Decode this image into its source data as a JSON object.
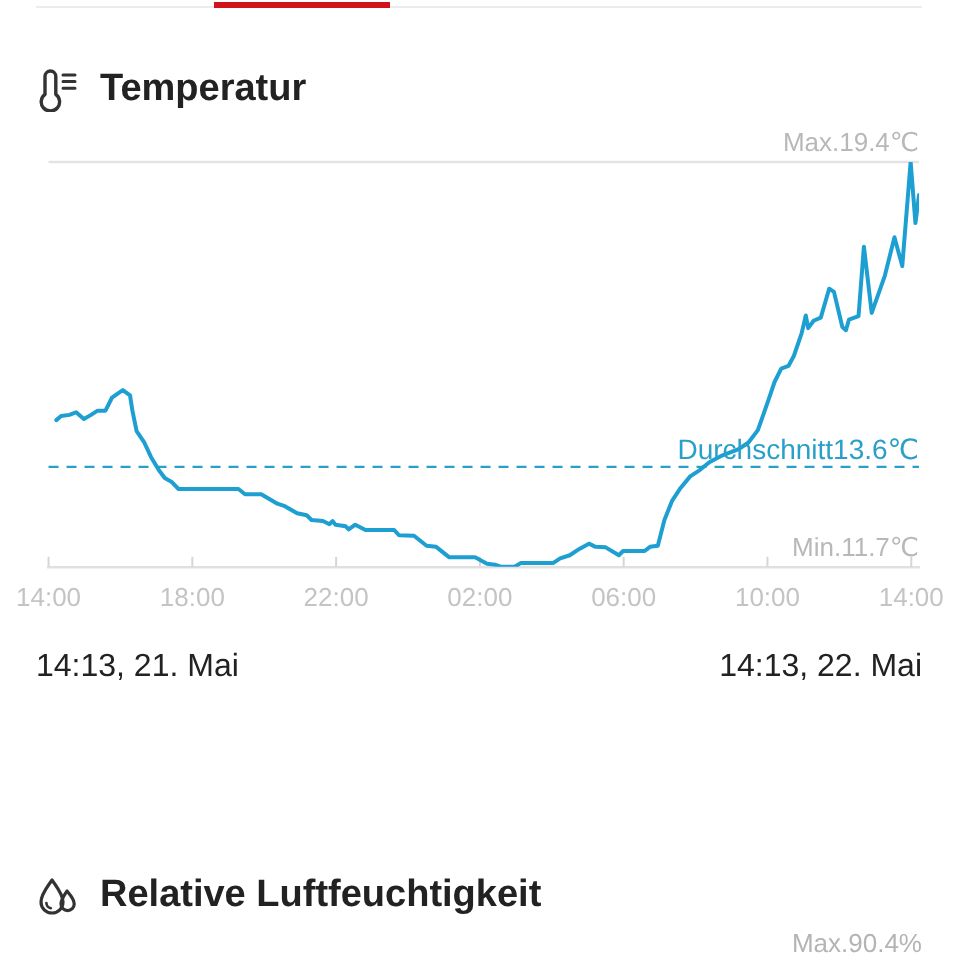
{
  "chart_data": [
    {
      "type": "line",
      "title": "Temperatur",
      "x": [
        "--05-21T14:13",
        "--05-21T14:21",
        "--05-21T14:35",
        "--05-21T14:46",
        "--05-21T14:59",
        "--05-21T15:11",
        "--05-21T15:22",
        "--05-21T15:35",
        "--05-21T15:46",
        "--05-21T15:56",
        "--05-21T16:04",
        "--05-21T16:16",
        "--05-21T16:20",
        "--05-21T16:27",
        "--05-21T16:40",
        "--05-21T16:51",
        "--05-21T17:04",
        "--05-21T17:14",
        "--05-21T17:25",
        "--05-21T17:37",
        "--05-21T19:17",
        "--05-21T19:28",
        "--05-21T19:55",
        "--05-21T20:22",
        "--05-21T20:33",
        "--05-21T20:55",
        "--05-21T21:11",
        "--05-21T21:19",
        "--05-21T21:38",
        "--05-21T21:49",
        "--05-21T21:54",
        "--05-21T21:59",
        "--05-21T22:16",
        "--05-21T22:21",
        "--05-21T22:32",
        "--05-21T22:49",
        "--05-21T23:37",
        "--05-21T23:45",
        "--05-22T00:10",
        "--05-22T00:31",
        "--05-22T00:47",
        "--05-22T01:09",
        "--05-22T01:52",
        "--05-22T02:12",
        "--05-22T02:25",
        "--05-22T02:36",
        "--05-22T02:58",
        "--05-22T03:08",
        "--05-22T04:02",
        "--05-22T04:14",
        "--05-22T04:30",
        "--05-22T04:46",
        "--05-22T05:02",
        "--05-22T05:13",
        "--05-22T05:30",
        "--05-22T05:52",
        "--05-22T05:59",
        "--05-22T06:35",
        "--05-22T06:44",
        "--05-22T06:57",
        "--05-22T07:08",
        "--05-22T07:21",
        "--05-22T07:35",
        "--05-22T07:51",
        "--05-22T08:07",
        "--05-22T08:23",
        "--05-22T08:45",
        "--05-22T09:12",
        "--05-22T09:28",
        "--05-22T09:44",
        "--05-22T10:01",
        "--05-22T10:12",
        "--05-22T10:23",
        "--05-22T10:35",
        "--05-22T10:44",
        "--05-22T10:57",
        "--05-22T11:04",
        "--05-22T11:08",
        "--05-22T11:17",
        "--05-22T11:29",
        "--05-22T11:43",
        "--05-22T11:51",
        "--05-22T12:05",
        "--05-22T12:11",
        "--05-22T12:16",
        "--05-22T12:32",
        "--05-22T12:41",
        "--05-22T12:54",
        "--05-22T13:16",
        "--05-22T13:32",
        "--05-22T13:45",
        "--05-22T13:59",
        "--05-22T14:07",
        "--05-22T14:13"
      ],
      "series": [
        {
          "color": "#1e9fd2",
          "values": [
            14.49,
            14.57,
            14.59,
            14.64,
            14.51,
            14.59,
            14.67,
            14.67,
            14.92,
            15.0,
            15.06,
            14.96,
            14.67,
            14.28,
            14.06,
            13.79,
            13.54,
            13.39,
            13.32,
            13.18,
            13.18,
            13.08,
            13.08,
            12.9,
            12.86,
            12.72,
            12.68,
            12.59,
            12.57,
            12.51,
            12.57,
            12.5,
            12.47,
            12.41,
            12.5,
            12.4,
            12.4,
            12.3,
            12.29,
            12.1,
            12.08,
            11.88,
            11.88,
            11.76,
            11.74,
            11.7,
            11.7,
            11.77,
            11.77,
            11.86,
            11.92,
            12.04,
            12.14,
            12.08,
            12.07,
            11.92,
            12.0,
            12.0,
            12.08,
            12.1,
            12.59,
            12.96,
            13.2,
            13.42,
            13.54,
            13.69,
            13.82,
            13.94,
            14.06,
            14.3,
            14.85,
            15.22,
            15.47,
            15.52,
            15.71,
            16.14,
            16.48,
            16.24,
            16.38,
            16.44,
            16.99,
            16.93,
            16.26,
            16.2,
            16.4,
            16.47,
            17.79,
            16.53,
            17.24,
            17.97,
            17.42,
            19.4,
            18.24,
            18.77
          ]
        }
      ],
      "xlim": [
        "--05-21T14:00",
        "--05-22T14:13"
      ],
      "xticks": [
        {
          "value": "--05-21T14:00",
          "label": "14:00"
        },
        {
          "value": "--05-21T18:00",
          "label": "18:00"
        },
        {
          "value": "--05-21T22:00",
          "label": "22:00"
        },
        {
          "value": "--05-22T02:00",
          "label": "02:00"
        },
        {
          "value": "--05-22T06:00",
          "label": "06:00"
        },
        {
          "value": "--05-22T10:00",
          "label": "10:00"
        },
        {
          "value": "--05-22T14:00",
          "label": "14:00"
        }
      ],
      "ylim": [
        11.7,
        19.4
      ],
      "yticks": [
        {
          "value": 11.7,
          "label": "11.7℃"
        },
        {
          "value": 19.4,
          "label": "19.4℃"
        }
      ],
      "ref_lines": [
        {
          "axis": "y",
          "value": 19.4,
          "color": "#e3e3e3"
        },
        {
          "axis": "y",
          "value": 13.6,
          "label": "Durchschnitt13.6℃",
          "color": "#2aa0c8",
          "line_style": "dashed"
        }
      ],
      "annotations": [
        "14:13, 21. Mai",
        "14:13, 22. Mai",
        "Max.",
        "Min."
      ]
    },
    {
      "type": "other",
      "title": "Relative Luftfeuchtigkeit",
      "annotations": [
        "Max.90.4%"
      ]
    }
  ]
}
